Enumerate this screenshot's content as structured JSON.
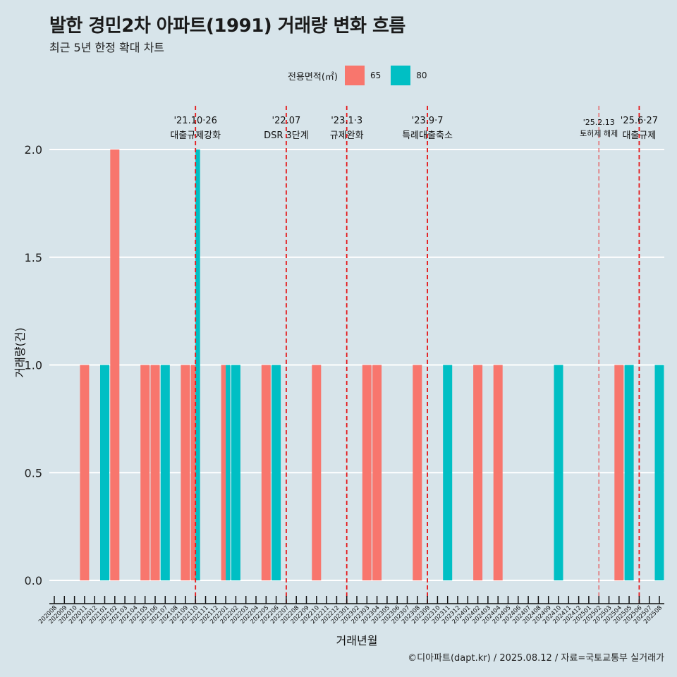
{
  "title": "발한 경민2차 아파트(1991) 거래량 변화 흐름",
  "subtitle": "최근 5년 한정 확대 차트",
  "credit": "©디아파트(dapt.kr) / 2025.08.12 / 자료=국토교통부 실거래가",
  "legend": {
    "title": "전용면적(㎡)",
    "items": [
      {
        "label": "65",
        "color": "#f8766d"
      },
      {
        "label": "80",
        "color": "#00bfc4"
      }
    ]
  },
  "chart_data": {
    "type": "bar",
    "xlabel": "거래년월",
    "ylabel": "거래량(건)",
    "ylim": [
      0,
      2
    ],
    "yticks": [
      "0.0",
      "0.5",
      "1.0",
      "1.5",
      "2.0"
    ],
    "grid": "horizontal",
    "legend_position": "top",
    "categories": [
      "202008",
      "202009",
      "202010",
      "202011",
      "202012",
      "202101",
      "202102",
      "202103",
      "202104",
      "202105",
      "202106",
      "202107",
      "202108",
      "202109",
      "202110",
      "202111",
      "202112",
      "202201",
      "202202",
      "202203",
      "202204",
      "202205",
      "202206",
      "202207",
      "202208",
      "202209",
      "202210",
      "202211",
      "202212",
      "202301",
      "202302",
      "202303",
      "202304",
      "202305",
      "202306",
      "202307",
      "202308",
      "202309",
      "202310",
      "202311",
      "202312",
      "202401",
      "202402",
      "202403",
      "202404",
      "202405",
      "202406",
      "202407",
      "202408",
      "202409",
      "202410",
      "202411",
      "202412",
      "202501",
      "202502",
      "202503",
      "202504",
      "202505",
      "202506",
      "202507",
      "202508"
    ],
    "series": [
      {
        "name": "65",
        "color": "#f8766d",
        "points": [
          {
            "x": "202011",
            "y": 1
          },
          {
            "x": "202102",
            "y": 2
          },
          {
            "x": "202105",
            "y": 1
          },
          {
            "x": "202106",
            "y": 1
          },
          {
            "x": "202109",
            "y": 1
          },
          {
            "x": "202110",
            "y": 1
          },
          {
            "x": "202201",
            "y": 1
          },
          {
            "x": "202205",
            "y": 1
          },
          {
            "x": "202210",
            "y": 1
          },
          {
            "x": "202303",
            "y": 1
          },
          {
            "x": "202304",
            "y": 1
          },
          {
            "x": "202308",
            "y": 1
          },
          {
            "x": "202402",
            "y": 1
          },
          {
            "x": "202404",
            "y": 1
          },
          {
            "x": "202504",
            "y": 1
          }
        ]
      },
      {
        "name": "80",
        "color": "#00bfc4",
        "points": [
          {
            "x": "202101",
            "y": 1
          },
          {
            "x": "202107",
            "y": 1
          },
          {
            "x": "202110",
            "y": 2
          },
          {
            "x": "202201",
            "y": 1
          },
          {
            "x": "202202",
            "y": 1
          },
          {
            "x": "202206",
            "y": 1
          },
          {
            "x": "202311",
            "y": 1
          },
          {
            "x": "202410",
            "y": 1
          },
          {
            "x": "202505",
            "y": 1
          },
          {
            "x": "202508",
            "y": 1
          }
        ]
      }
    ],
    "events": [
      {
        "x": 14.0,
        "date": "'21.10·26",
        "label": "대출규제강화",
        "style": "major"
      },
      {
        "x": 23.0,
        "date": "'22.07",
        "label": "DSR 3단계",
        "style": "major"
      },
      {
        "x": 29.0,
        "date": "'23.1·3",
        "label": "규제완화",
        "style": "major"
      },
      {
        "x": 37.0,
        "date": "'23.9·7",
        "label": "특례대출축소",
        "style": "major"
      },
      {
        "x": 54.0,
        "date": "'25.2.13",
        "label": "토허제 해제",
        "style": "minor"
      },
      {
        "x": 58.0,
        "date": "'25.6·27",
        "label": "대출규제",
        "style": "major"
      }
    ]
  }
}
